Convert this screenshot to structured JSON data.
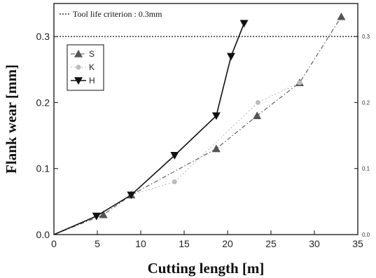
{
  "chart_data": {
    "type": "line",
    "xlabel": "Cutting length [m]",
    "ylabel": "Flank wear [mm]",
    "xlim": [
      0,
      35
    ],
    "ylim": [
      0,
      0.35
    ],
    "x_ticks": [
      0,
      5,
      10,
      15,
      20,
      25,
      30,
      35
    ],
    "y_ticks": [
      0.0,
      0.1,
      0.2,
      0.3
    ],
    "y_tick_labels": [
      "0.0",
      "0.1",
      "0.2",
      "0.3"
    ],
    "right_y_tick_labels": [
      "0.0",
      "0.1",
      "0.2",
      "0.3"
    ],
    "grid": false,
    "legend_position": "upper-left",
    "criterion": {
      "label": "Tool life criterion : 0.3mm",
      "value": 0.3,
      "style": "dotted"
    },
    "series": [
      {
        "name": "S",
        "marker": "triangle-up",
        "line": "dash-dot",
        "color": "#555555",
        "x": [
          0,
          5.7,
          8.9,
          18.7,
          23.4,
          28.3,
          33.1
        ],
        "y": [
          0,
          0.03,
          0.06,
          0.13,
          0.18,
          0.23,
          0.33
        ]
      },
      {
        "name": "K",
        "marker": "circle",
        "line": "dotted",
        "color": "#bbbbbb",
        "x": [
          0,
          4.9,
          8.9,
          13.9,
          23.5,
          28.3
        ],
        "y": [
          0,
          0.028,
          0.06,
          0.08,
          0.2,
          0.23
        ]
      },
      {
        "name": "H",
        "marker": "triangle-down",
        "line": "solid",
        "color": "#111111",
        "x": [
          0,
          4.9,
          8.9,
          13.9,
          18.7,
          20.4,
          21.9
        ],
        "y": [
          0,
          0.028,
          0.06,
          0.12,
          0.18,
          0.27,
          0.32
        ]
      }
    ]
  }
}
